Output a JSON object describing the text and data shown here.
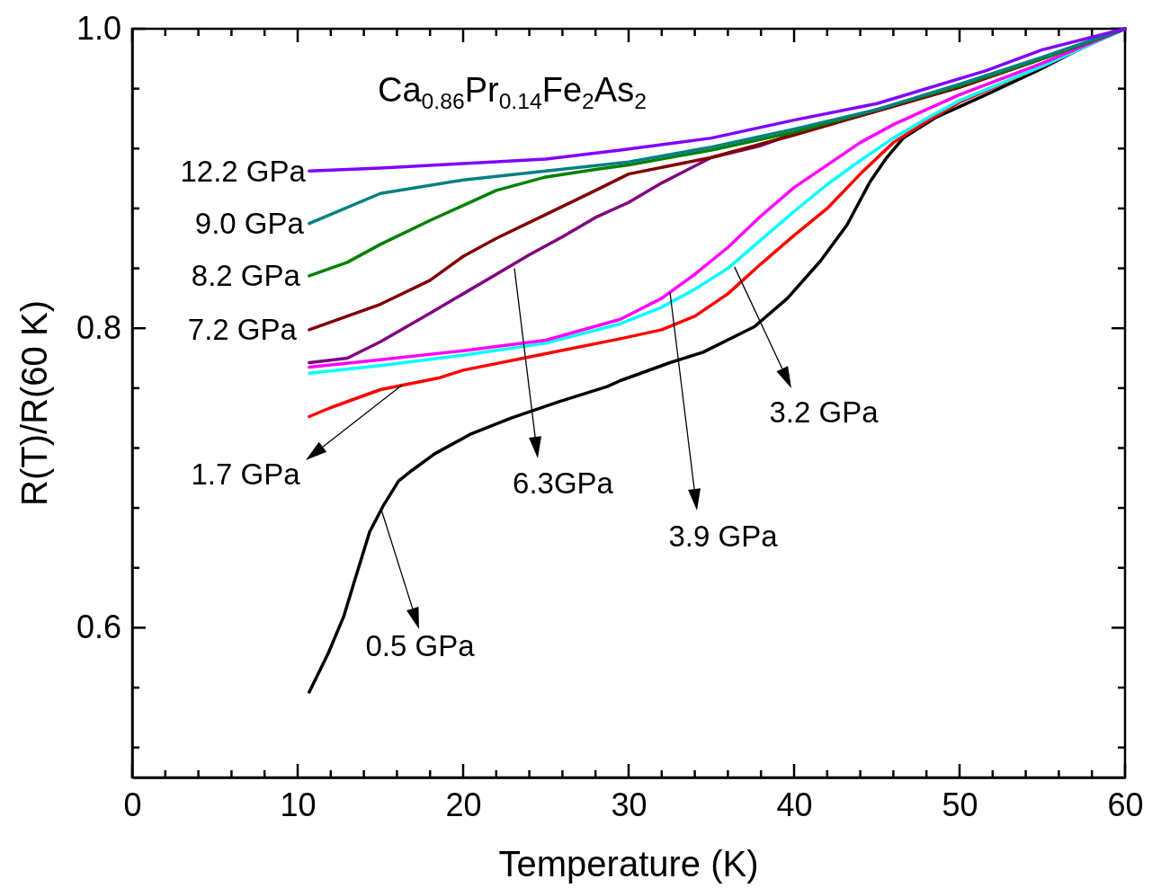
{
  "chart_data": {
    "type": "line",
    "title": "Ca$_{0.86}$Pr$_{0.14}$Fe$_{2}$As$_{2}$",
    "xlabel": "Temperature (K)",
    "ylabel": "R(T)/R(60 K)",
    "xlim": [
      0,
      60
    ],
    "ylim": [
      0.5,
      1.0
    ],
    "xticks": [
      0,
      {
        "value": 2,
        "label": null
      },
      {
        "value": 4,
        "label": null
      },
      {
        "value": 6,
        "label": null
      },
      {
        "value": 8,
        "label": null
      },
      10,
      {
        "value": 12,
        "label": null
      },
      {
        "value": 14,
        "label": null
      },
      {
        "value": 16,
        "label": null
      },
      {
        "value": 18,
        "label": null
      },
      20,
      {
        "value": 22,
        "label": null
      },
      {
        "value": 24,
        "label": null
      },
      {
        "value": 26,
        "label": null
      },
      {
        "value": 28,
        "label": null
      },
      30,
      {
        "value": 32,
        "label": null
      },
      {
        "value": 34,
        "label": null
      },
      {
        "value": 36,
        "label": null
      },
      {
        "value": 38,
        "label": null
      },
      40,
      {
        "value": 42,
        "label": null
      },
      {
        "value": 44,
        "label": null
      },
      {
        "value": 46,
        "label": null
      },
      {
        "value": 48,
        "label": null
      },
      50,
      {
        "value": 52,
        "label": null
      },
      {
        "value": 54,
        "label": null
      },
      {
        "value": 56,
        "label": null
      },
      {
        "value": 58,
        "label": null
      },
      60
    ],
    "yticks": [
      {
        "value": 0.52,
        "label": null
      },
      {
        "value": 0.56,
        "label": null
      },
      0.6,
      {
        "value": 0.64,
        "label": null
      },
      {
        "value": 0.68,
        "label": null
      },
      {
        "value": 0.72,
        "label": null
      },
      {
        "value": 0.76,
        "label": null
      },
      0.8,
      {
        "value": 0.84,
        "label": null
      },
      {
        "value": 0.88,
        "label": null
      },
      {
        "value": 0.92,
        "label": null
      },
      {
        "value": 0.96,
        "label": null
      },
      {
        "value": 1.0,
        "label": "1.0"
      }
    ],
    "annotations": [
      {
        "text": "0.5 GPa",
        "x": 15.05,
        "y": 0.679
      },
      {
        "text": "1.7 GPa",
        "x": 16.3,
        "y": 0.762
      },
      {
        "text": "3.2 GPa",
        "x": 36.4,
        "y": 0.841
      },
      {
        "text": "3.9 GPa",
        "x": 32.5,
        "y": 0.824
      },
      {
        "text": "6.3GPa",
        "x": 23.1,
        "y": 0.84
      }
    ],
    "grid": false,
    "marker": "none",
    "line_style": "solid",
    "series": [
      {
        "color": "#000000",
        "x": [
          10.7,
          11.85,
          12.8,
          13.4,
          14.35,
          15.15,
          16.1,
          16.9,
          18.26,
          20.4,
          22.9,
          25.8,
          28.7,
          29.5,
          32.5,
          34.5,
          37.6,
          39.6,
          41.6,
          43.2,
          44.6,
          45.6,
          46.6,
          48.6,
          51.6,
          54.7,
          57.7,
          60
        ],
        "values": [
          0.557,
          0.583,
          0.608,
          0.63,
          0.664,
          0.681,
          0.698,
          0.705,
          0.716,
          0.729,
          0.74,
          0.751,
          0.761,
          0.765,
          0.777,
          0.784,
          0.801,
          0.82,
          0.845,
          0.869,
          0.898,
          0.914,
          0.927,
          0.941,
          0.956,
          0.972,
          0.989,
          1.0
        ]
      },
      {
        "color": "#ff0000",
        "x": [
          10.7,
          12,
          15,
          18.6,
          20,
          25,
          29.5,
          32,
          34,
          36,
          38,
          40,
          42,
          44,
          46,
          48,
          50,
          55,
          60
        ],
        "values": [
          0.741,
          0.747,
          0.759,
          0.767,
          0.772,
          0.783,
          0.793,
          0.799,
          0.808,
          0.823,
          0.843,
          0.862,
          0.88,
          0.903,
          0.924,
          0.938,
          0.951,
          0.975,
          1.0
        ]
      },
      {
        "color": "#00ffff",
        "x": [
          10.7,
          15,
          20,
          25,
          29.5,
          32,
          34,
          36,
          38,
          40,
          42,
          44,
          46,
          48,
          50,
          55,
          60
        ],
        "values": [
          0.77,
          0.775,
          0.782,
          0.79,
          0.803,
          0.814,
          0.826,
          0.84,
          0.859,
          0.878,
          0.896,
          0.912,
          0.927,
          0.94,
          0.952,
          0.975,
          1.0
        ]
      },
      {
        "color": "#ff00ff",
        "x": [
          10.7,
          15,
          20,
          25,
          29.5,
          32,
          34,
          36,
          38,
          40,
          42,
          44,
          46,
          48,
          50,
          55,
          60
        ],
        "values": [
          0.774,
          0.779,
          0.785,
          0.792,
          0.806,
          0.82,
          0.836,
          0.854,
          0.875,
          0.894,
          0.909,
          0.924,
          0.936,
          0.946,
          0.956,
          0.977,
          1.0
        ]
      },
      {
        "color": "#800080",
        "x": [
          10.7,
          13,
          15,
          18,
          20,
          22,
          24,
          26,
          28,
          30,
          32,
          35,
          38,
          40,
          45,
          50,
          55,
          60
        ],
        "values": [
          0.777,
          0.78,
          0.791,
          0.81,
          0.823,
          0.836,
          0.849,
          0.861,
          0.874,
          0.884,
          0.897,
          0.914,
          0.922,
          0.93,
          0.945,
          0.961,
          0.98,
          1.0
        ]
      },
      {
        "name": "7.2 GPa",
        "color": "#800000",
        "x": [
          10.7,
          15,
          18,
          20,
          22,
          25,
          28,
          30,
          35,
          40,
          45,
          50,
          55,
          60
        ],
        "values": [
          0.799,
          0.816,
          0.832,
          0.848,
          0.86,
          0.876,
          0.892,
          0.903,
          0.914,
          0.929,
          0.945,
          0.961,
          0.98,
          1.0
        ]
      },
      {
        "name": "8.2 GPa",
        "color": "#008000",
        "x": [
          10.7,
          13,
          15,
          18,
          20,
          22,
          25,
          28,
          30,
          35,
          40,
          45,
          50,
          55,
          60
        ],
        "values": [
          0.835,
          0.844,
          0.856,
          0.872,
          0.882,
          0.892,
          0.901,
          0.906,
          0.909,
          0.919,
          0.931,
          0.946,
          0.962,
          0.98,
          1.0
        ]
      },
      {
        "name": "9.0 GPa",
        "color": "#008080",
        "x": [
          10.7,
          15,
          20,
          25,
          30,
          35,
          40,
          45,
          50,
          55,
          60
        ],
        "values": [
          0.87,
          0.89,
          0.899,
          0.905,
          0.911,
          0.921,
          0.933,
          0.946,
          0.963,
          0.981,
          1.0
        ]
      },
      {
        "name": "12.2 GPa",
        "color": "#8000ff",
        "x": [
          10.7,
          15,
          20,
          25,
          29.5,
          35,
          40,
          45,
          51.6,
          55,
          60
        ],
        "values": [
          0.905,
          0.907,
          0.91,
          0.913,
          0.919,
          0.927,
          0.939,
          0.95,
          0.972,
          0.986,
          1.0
        ]
      }
    ]
  }
}
